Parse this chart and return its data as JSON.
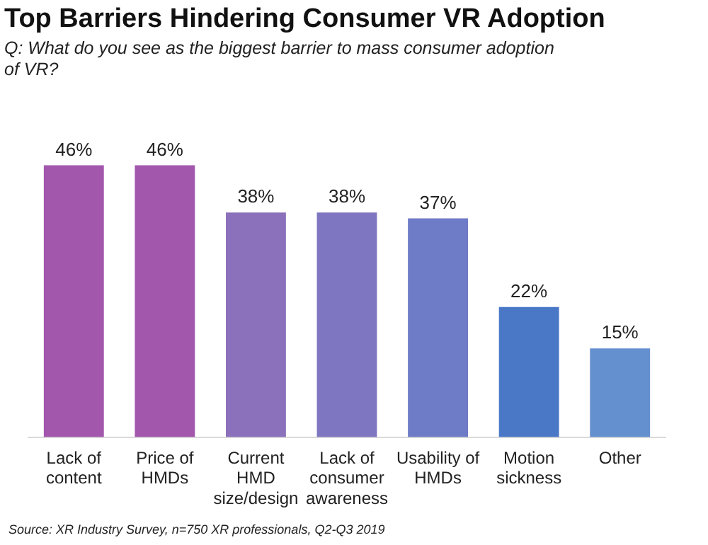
{
  "chart_data": {
    "type": "bar",
    "title": "Top Barriers Hindering Consumer VR Adoption",
    "subtitle": "Q: What do you see as the biggest barrier to mass consumer adoption of VR?",
    "categories": [
      "Lack of\ncontent",
      "Price of\nHMDs",
      "Current\nHMD\nsize/design",
      "Lack of\nconsumer\nawareness",
      "Usability of\nHMDs",
      "Motion\nsickness",
      "Other"
    ],
    "values": [
      46,
      46,
      38,
      38,
      37,
      22,
      15
    ],
    "colors": [
      "#a257ad",
      "#a257ad",
      "#8b70bb",
      "#7e76c0",
      "#6e7bc6",
      "#4a78c6",
      "#6590cf"
    ],
    "value_labels": [
      "46%",
      "46%",
      "38%",
      "38%",
      "37%",
      "22%",
      "15%"
    ],
    "grid": false,
    "legend": false,
    "tick_labels": "x",
    "annotations": [
      "Source: XR Industry Survey, n=750 XR professionals, Q2-Q3 2019"
    ]
  }
}
